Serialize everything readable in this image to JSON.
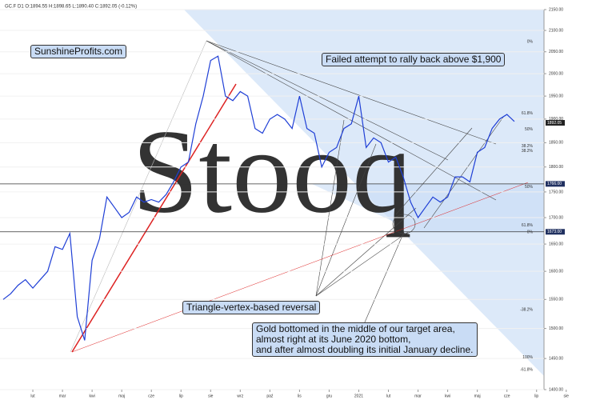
{
  "chart_data": {
    "type": "line",
    "header": "GC.F  D1  O:1894.55  H:1898.65  L:1890.40  C:1892.05  (-0.12%)",
    "watermark": "Stooq",
    "brand": "SunshineProfits.com",
    "annotations": [
      "Failed attempt to rally back above $1,900",
      "Triangle-vertex-based reversal"
    ],
    "note_lines": [
      "Gold bottomed in the middle of our target area,",
      "almost right at its June 2020 bottom,",
      "and after almost doubling its initial January decline."
    ],
    "categories": [
      null,
      null,
      null,
      null,
      "lut",
      null,
      null,
      null,
      "mar",
      null,
      null,
      null,
      "kwi",
      null,
      null,
      null,
      "maj",
      null,
      null,
      null,
      "cze",
      null,
      null,
      null,
      "lip",
      null,
      null,
      null,
      "sie",
      null,
      null,
      null,
      "wrz",
      null,
      null,
      null,
      "paź",
      null,
      null,
      null,
      "lis",
      null,
      null,
      null,
      "gru",
      null,
      null,
      null,
      "2021",
      null,
      null,
      null,
      "lut",
      null,
      null,
      null,
      "mar",
      null,
      null,
      null,
      "kwi",
      null,
      null,
      null,
      "maj",
      null,
      null,
      null,
      "cze",
      null,
      null,
      null,
      "lip",
      null,
      null,
      null,
      "sie",
      null
    ],
    "series": [
      {
        "name": "GC.F",
        "color": "#1f3fd6",
        "values": [
          1550,
          1560,
          1575,
          1585,
          1570,
          1585,
          1600,
          1645,
          1640,
          1670,
          1520,
          1480,
          1620,
          1660,
          1740,
          1720,
          1700,
          1710,
          1740,
          1730,
          1735,
          1730,
          1745,
          1770,
          1800,
          1810,
          1890,
          1950,
          2030,
          2040,
          1950,
          1940,
          1960,
          1950,
          1880,
          1870,
          1900,
          1910,
          1900,
          1880,
          1950,
          1880,
          1870,
          1800,
          1830,
          1840,
          1880,
          1890,
          1950,
          1840,
          1860,
          1850,
          1810,
          1820,
          1780,
          1730,
          1700,
          1720,
          1740,
          1730,
          1740,
          1780,
          1780,
          1770,
          1830,
          1840,
          1880,
          1900,
          1910,
          1895,
          null,
          null,
          null,
          null,
          null,
          null,
          null,
          null
        ]
      }
    ],
    "ylim": [
      1400,
      2150
    ],
    "log": true,
    "yticks": [
      {
        "value": 2150,
        "label": "2150.00"
      },
      {
        "value": 2100,
        "label": "2100.00"
      },
      {
        "value": 2050,
        "label": "2050.00"
      },
      {
        "value": 2000,
        "label": "2000.00"
      },
      {
        "value": 1950,
        "label": "1950.00"
      },
      {
        "value": 1900,
        "label": "1900.00"
      },
      {
        "value": 1850,
        "label": "1850.00"
      },
      {
        "value": 1800,
        "label": "1800.00"
      },
      {
        "value": 1750,
        "label": "1750.00"
      },
      {
        "value": 1700,
        "label": "1700.00"
      },
      {
        "value": 1650,
        "label": "1650.00"
      },
      {
        "value": 1600,
        "label": "1600.00"
      },
      {
        "value": 1550,
        "label": "1550.00"
      },
      {
        "value": 1500,
        "label": "1500.00"
      },
      {
        "value": 1450,
        "label": "1450.00"
      },
      {
        "value": 1400,
        "label": "1400.00"
      }
    ],
    "levels": [
      {
        "value": 1892.05,
        "label": "1892.05"
      },
      {
        "value": 1766,
        "label": "1766.00"
      },
      {
        "value": 1673,
        "label": "1673.00"
      }
    ],
    "fib_labels": [
      {
        "value": 2073,
        "label": "0%"
      },
      {
        "value": 1912,
        "label": "61.8%"
      },
      {
        "value": 1878,
        "label": "50%"
      },
      {
        "value": 1843,
        "label": "38.2%"
      },
      {
        "value": 1833,
        "label": "38.2%"
      },
      {
        "value": 1760,
        "label": "50%"
      },
      {
        "value": 1685,
        "label": "61.8%"
      },
      {
        "value": 1672,
        "label": "0%"
      },
      {
        "value": 1532,
        "label": "-38.2%"
      },
      {
        "value": 1452,
        "label": "100%"
      },
      {
        "value": 1432,
        "label": "-61.8%"
      }
    ],
    "grid": true
  }
}
